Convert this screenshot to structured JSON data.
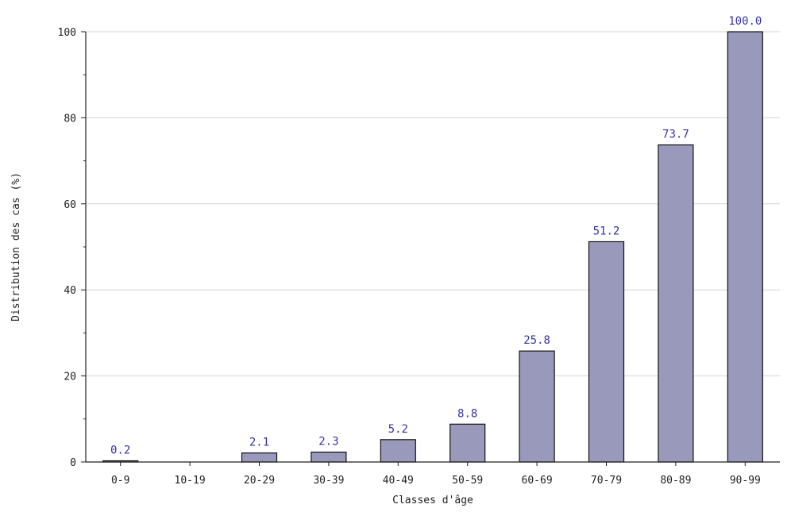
{
  "chart_data": {
    "type": "bar",
    "title": "",
    "xlabel": "Classes d'âge",
    "ylabel": "Distribution des cas (%)",
    "categories": [
      "0-9",
      "10-19",
      "20-29",
      "30-39",
      "40-49",
      "50-59",
      "60-69",
      "70-79",
      "80-89",
      "90-99"
    ],
    "values": [
      0.2,
      0,
      2.1,
      2.3,
      5.2,
      8.8,
      25.8,
      51.2,
      73.7,
      100.0
    ],
    "data_labels": [
      "0.2",
      "",
      "2.1",
      "2.3",
      "5.2",
      "8.8",
      "25.8",
      "51.2",
      "73.7",
      "100.0"
    ],
    "ylim": [
      0,
      100
    ],
    "yticks": [
      "0",
      "20",
      "40",
      "60",
      "80",
      "100"
    ],
    "grid": true,
    "legend": "none",
    "colors": {
      "bar_fill": "#9999bb",
      "bar_stroke": "#111111",
      "data_label": "#3333aa",
      "grid": "#d4d4d4",
      "axis": "#222222"
    }
  }
}
